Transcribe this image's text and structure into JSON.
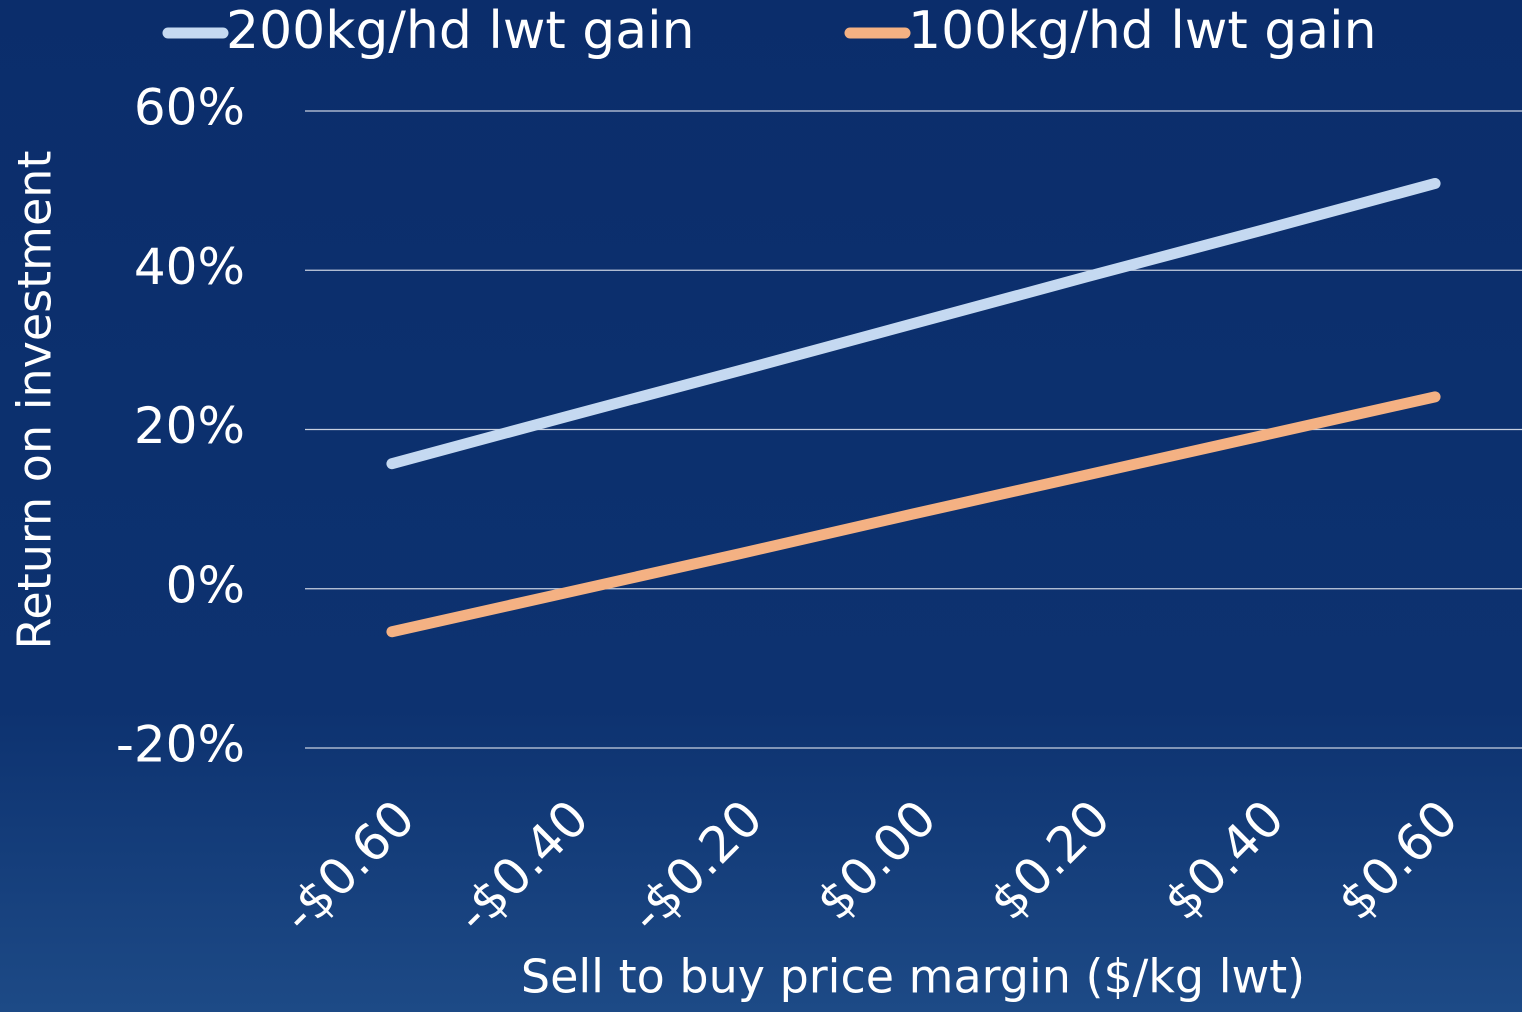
{
  "chart_data": {
    "type": "line",
    "x_label": "Sell to buy price margin ($/kg lwt)",
    "y_label": "Return on investment",
    "categories": [
      "-$0.60",
      "-$0.40",
      "-$0.20",
      "$0.00",
      "$0.20",
      "$0.40",
      "$0.60"
    ],
    "series": [
      {
        "name": "200kg/hd lwt gain",
        "color": "#c5d9f1",
        "values": [
          15.7,
          21.6,
          27.4,
          33.3,
          39.2,
          45.0,
          50.9
        ]
      },
      {
        "name": "100kg/hd lwt gain",
        "color": "#f4b183",
        "values": [
          -5.4,
          -0.5,
          4.4,
          9.4,
          14.3,
          19.2,
          24.1
        ]
      }
    ],
    "ylim": [
      -20,
      60
    ],
    "yticks": [
      {
        "value": -20,
        "label": "-20%"
      },
      {
        "value": 0,
        "label": "0%"
      },
      {
        "value": 20,
        "label": "20%"
      },
      {
        "value": 40,
        "label": "40%"
      },
      {
        "value": 60,
        "label": "60%"
      }
    ],
    "grid": true,
    "legend": "top"
  }
}
